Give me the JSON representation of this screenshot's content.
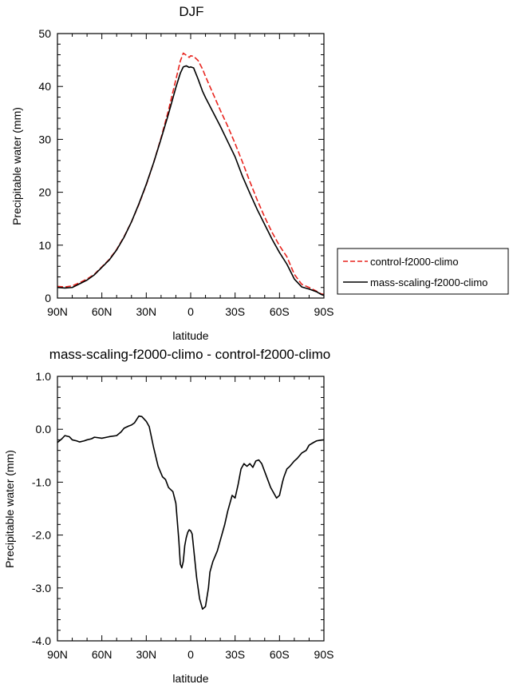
{
  "chart_data": [
    {
      "type": "line",
      "title": "DJF",
      "xlabel": "latitude",
      "ylabel": "Precipitable water (mm)",
      "xlim": [
        90,
        -90
      ],
      "ylim": [
        0,
        50
      ],
      "x_ticks": [
        {
          "value": 90,
          "label": "90N"
        },
        {
          "value": 60,
          "label": "60N"
        },
        {
          "value": 30,
          "label": "30N"
        },
        {
          "value": 0,
          "label": "0"
        },
        {
          "value": -30,
          "label": "30S"
        },
        {
          "value": -60,
          "label": "60S"
        },
        {
          "value": -90,
          "label": "90S"
        }
      ],
      "y_ticks": [
        {
          "value": 0,
          "label": "0"
        },
        {
          "value": 10,
          "label": "10"
        },
        {
          "value": 20,
          "label": "20"
        },
        {
          "value": 30,
          "label": "30"
        },
        {
          "value": 40,
          "label": "40"
        },
        {
          "value": 50,
          "label": "50"
        }
      ],
      "legend": "right",
      "series": [
        {
          "name": "control-f2000-climo",
          "color": "#e8241e",
          "dash": "dashed",
          "x": [
            90,
            85,
            80,
            75,
            70,
            65,
            60,
            55,
            50,
            45,
            40,
            35,
            30,
            25,
            20,
            15,
            10,
            7,
            5,
            3,
            1,
            0,
            -2,
            -5,
            -8,
            -10,
            -15,
            -20,
            -25,
            -30,
            -35,
            -40,
            -45,
            -50,
            -55,
            -60,
            -65,
            -70,
            -75,
            -80,
            -85,
            -88,
            -90
          ],
          "y": [
            2.2,
            2.1,
            2.3,
            2.9,
            3.6,
            4.5,
            5.9,
            7.3,
            9.2,
            11.6,
            14.4,
            17.7,
            21.4,
            25.6,
            30.3,
            35.5,
            41.3,
            44.8,
            46.3,
            45.9,
            45.5,
            45.8,
            45.7,
            44.9,
            43.3,
            41.9,
            38.7,
            35.5,
            32.5,
            29.2,
            25.7,
            22.0,
            18.5,
            15.3,
            12.4,
            9.9,
            7.8,
            4.5,
            2.6,
            2.0,
            1.3,
            0.8,
            0.7
          ]
        },
        {
          "name": "mass-scaling-f2000-climo",
          "color": "#000000",
          "dash": "solid",
          "x": [
            90,
            85,
            80,
            75,
            70,
            65,
            60,
            55,
            50,
            45,
            40,
            35,
            30,
            25,
            20,
            15,
            10,
            7,
            5,
            3,
            1,
            0,
            -2,
            -5,
            -8,
            -10,
            -15,
            -20,
            -25,
            -30,
            -35,
            -40,
            -45,
            -50,
            -55,
            -60,
            -65,
            -70,
            -75,
            -80,
            -85,
            -88,
            -90
          ],
          "y": [
            2.0,
            1.9,
            2.0,
            2.7,
            3.4,
            4.4,
            5.8,
            7.2,
            9.1,
            11.5,
            14.4,
            17.8,
            21.5,
            25.6,
            30.1,
            34.8,
            39.8,
            42.5,
            43.7,
            43.9,
            43.6,
            43.7,
            43.5,
            41.4,
            39.1,
            37.9,
            35.2,
            32.5,
            29.6,
            26.7,
            23.0,
            19.8,
            16.7,
            13.9,
            11.1,
            8.6,
            6.4,
            3.6,
            2.1,
            1.7,
            1.2,
            0.7,
            0.5
          ]
        }
      ]
    },
    {
      "type": "line",
      "title": "mass-scaling-f2000-climo - control-f2000-climo",
      "xlabel": "latitude",
      "ylabel": "Precipitable water (mm)",
      "xlim": [
        90,
        -90
      ],
      "ylim": [
        -4.0,
        1.0
      ],
      "x_ticks": [
        {
          "value": 90,
          "label": "90N"
        },
        {
          "value": 60,
          "label": "60N"
        },
        {
          "value": 30,
          "label": "30N"
        },
        {
          "value": 0,
          "label": "0"
        },
        {
          "value": -30,
          "label": "30S"
        },
        {
          "value": -60,
          "label": "60S"
        },
        {
          "value": -90,
          "label": "90S"
        }
      ],
      "y_ticks": [
        {
          "value": 1.0,
          "label": "1.0"
        },
        {
          "value": 0.0,
          "label": "0.0"
        },
        {
          "value": -1.0,
          "label": "-1.0"
        },
        {
          "value": -2.0,
          "label": "-2.0"
        },
        {
          "value": -3.0,
          "label": "-3.0"
        },
        {
          "value": -4.0,
          "label": "-4.0"
        }
      ],
      "series": [
        {
          "color": "#000000",
          "dash": "solid",
          "x": [
            90,
            87,
            85,
            82,
            80,
            77,
            75,
            72,
            70,
            67,
            65,
            60,
            55,
            50,
            47,
            45,
            42,
            40,
            38,
            35,
            33,
            30,
            28,
            25,
            22,
            19,
            17,
            15,
            12,
            10,
            8,
            7,
            6,
            5,
            4,
            3,
            2,
            1,
            0,
            -1,
            -2,
            -4,
            -6,
            -8,
            -10,
            -12,
            -13,
            -15,
            -18,
            -20,
            -23,
            -25,
            -28,
            -30,
            -32,
            -34,
            -36,
            -38,
            -40,
            -42,
            -44,
            -46,
            -48,
            -50,
            -52,
            -54,
            -56,
            -58,
            -60,
            -62,
            -63,
            -65,
            -67,
            -70,
            -72,
            -75,
            -78,
            -80,
            -83,
            -85,
            -87,
            -90
          ],
          "y": [
            -0.25,
            -0.18,
            -0.12,
            -0.14,
            -0.2,
            -0.22,
            -0.24,
            -0.22,
            -0.2,
            -0.18,
            -0.15,
            -0.17,
            -0.14,
            -0.12,
            -0.05,
            0.02,
            0.06,
            0.08,
            0.12,
            0.25,
            0.24,
            0.15,
            0.05,
            -0.35,
            -0.7,
            -0.9,
            -0.95,
            -1.1,
            -1.18,
            -1.4,
            -2.1,
            -2.55,
            -2.62,
            -2.5,
            -2.2,
            -2.05,
            -1.95,
            -1.9,
            -1.92,
            -1.98,
            -2.25,
            -2.8,
            -3.2,
            -3.4,
            -3.35,
            -3.0,
            -2.7,
            -2.5,
            -2.3,
            -2.1,
            -1.8,
            -1.55,
            -1.25,
            -1.3,
            -1.05,
            -0.75,
            -0.65,
            -0.7,
            -0.65,
            -0.72,
            -0.6,
            -0.58,
            -0.65,
            -0.8,
            -0.95,
            -1.1,
            -1.2,
            -1.3,
            -1.25,
            -1.0,
            -0.9,
            -0.75,
            -0.7,
            -0.6,
            -0.55,
            -0.45,
            -0.4,
            -0.3,
            -0.25,
            -0.22,
            -0.21,
            -0.2
          ]
        }
      ]
    }
  ]
}
